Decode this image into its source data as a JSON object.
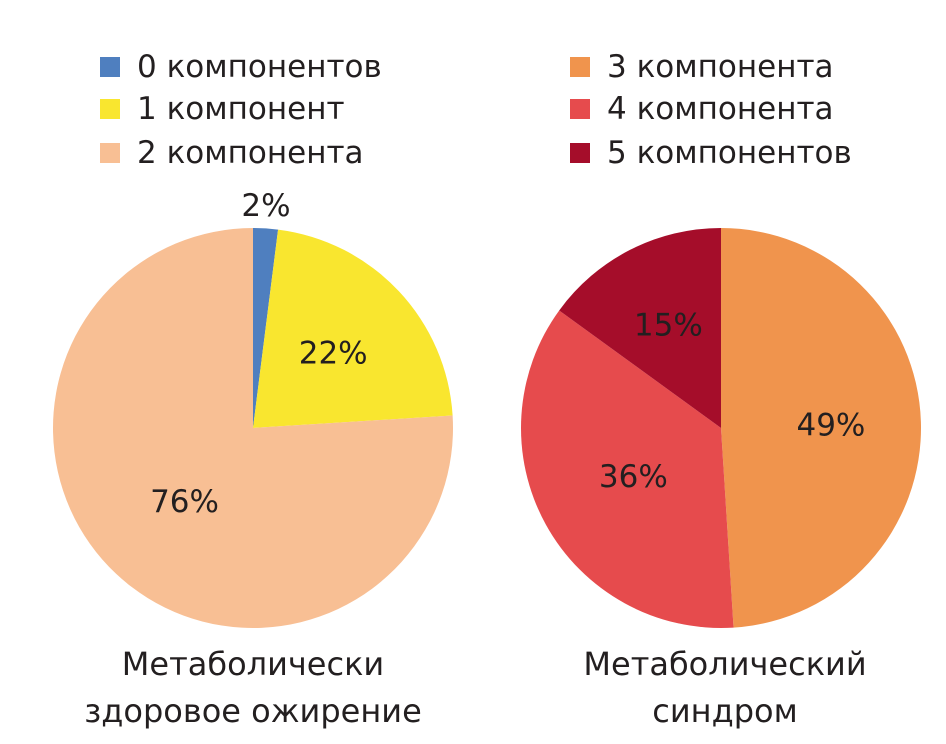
{
  "chart_data": [
    {
      "type": "pie",
      "title": "Метаболически здоровое ожирение",
      "title_lines": [
        "Метаболически",
        "здоровое ожирение"
      ],
      "start": "top",
      "direction": "clockwise",
      "slices": [
        {
          "label": "0 компонентов",
          "value": 2,
          "data_label": "2%",
          "color": "#4f7fbf"
        },
        {
          "label": "1 компонент",
          "value": 22,
          "data_label": "22%",
          "color": "#f9e62f"
        },
        {
          "label": "2 компонента",
          "value": 76,
          "data_label": "76%",
          "color": "#f8bf94"
        }
      ]
    },
    {
      "type": "pie",
      "title": "Метаболический синдром",
      "title_lines": [
        "Метаболический",
        "синдром"
      ],
      "start": "top",
      "direction": "clockwise",
      "slices": [
        {
          "label": "3 компонента",
          "value": 49,
          "data_label": "49%",
          "color": "#f0944d"
        },
        {
          "label": "4 компонента",
          "value": 36,
          "data_label": "36%",
          "color": "#e64b4d"
        },
        {
          "label": "5 компонентов",
          "value": 15,
          "data_label": "15%",
          "color": "#a50d2a"
        }
      ]
    }
  ]
}
